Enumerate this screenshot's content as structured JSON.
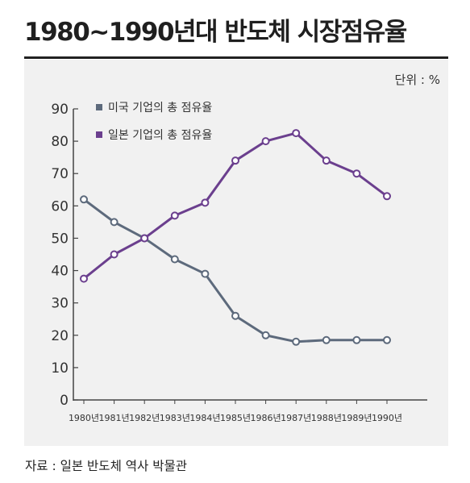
{
  "title": "1980~1990년대 반도체 시장점유율",
  "source": "자료 : 일본 반도체 역사 박물관",
  "unit_label": "단위 : %",
  "colors": {
    "us": "#5d6a7c",
    "japan": "#6b3f8e",
    "panel": "#f1f1f1",
    "axis": "#444444"
  },
  "chart_data": {
    "type": "line",
    "title": "1980~1990년대 반도체 시장점유율",
    "xlabel": "",
    "ylabel": "",
    "ylim": [
      0,
      90
    ],
    "yticks": [
      0,
      10,
      20,
      30,
      40,
      50,
      60,
      70,
      80,
      90
    ],
    "categories": [
      "1980년",
      "1981년",
      "1982년",
      "1983년",
      "1984년",
      "1985년",
      "1986년",
      "1987년",
      "1988년",
      "1989년",
      "1990년"
    ],
    "legend_position": "top-left",
    "grid": false,
    "series": [
      {
        "name": "미국 기업의 총 점유율",
        "color": "#5d6a7c",
        "marker": "square",
        "values": [
          62,
          55,
          50,
          43.5,
          39,
          26,
          20,
          18,
          18.5,
          18.5,
          18.5
        ]
      },
      {
        "name": "일본 기업의 총 점유율",
        "color": "#6b3f8e",
        "marker": "square",
        "values": [
          37.5,
          45,
          50,
          57,
          61,
          74,
          80,
          82.5,
          74,
          70,
          63
        ]
      }
    ]
  }
}
